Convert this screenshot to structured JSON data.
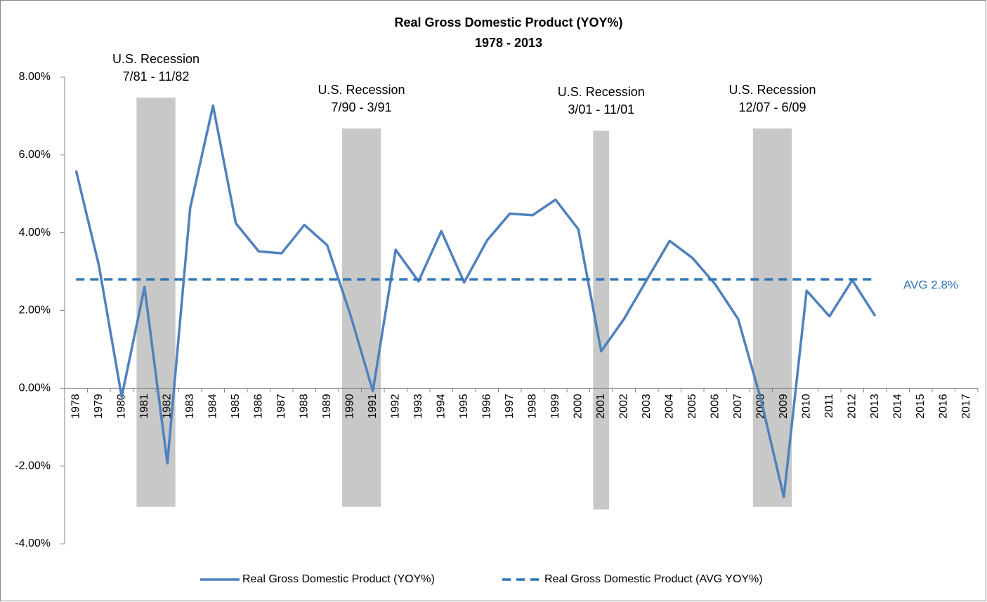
{
  "chart_data": {
    "type": "line",
    "title": "Real Gross Domestic Product (YOY%)",
    "subtitle": "1978 - 2013",
    "categories": [
      "1978",
      "1979",
      "1980",
      "1981",
      "1982",
      "1983",
      "1984",
      "1985",
      "1986",
      "1987",
      "1988",
      "1989",
      "1990",
      "1991",
      "1992",
      "1993",
      "1994",
      "1995",
      "1996",
      "1997",
      "1998",
      "1999",
      "2000",
      "2001",
      "2002",
      "2003",
      "2004",
      "2005",
      "2006",
      "2007",
      "2008",
      "2009",
      "2010",
      "2011",
      "2012",
      "2013",
      "2014",
      "2015",
      "2016",
      "2017"
    ],
    "series": [
      {
        "name": "Real Gross Domestic Product (YOY%)",
        "color": "#4f81bd",
        "dashed": false,
        "values": [
          5.6,
          3.16,
          -0.22,
          2.6,
          -1.93,
          4.64,
          7.27,
          4.24,
          3.52,
          3.47,
          4.2,
          3.68,
          1.92,
          -0.07,
          3.56,
          2.75,
          4.04,
          2.72,
          3.8,
          4.49,
          4.45,
          4.85,
          4.09,
          0.95,
          1.78,
          2.79,
          3.79,
          3.35,
          2.67,
          1.78,
          -0.29,
          -2.8,
          2.51,
          1.85,
          2.78,
          1.86,
          null,
          null,
          null,
          null
        ]
      },
      {
        "name": "Real Gross Domestic Product (AVG YOY%)",
        "color": "#2e75b6",
        "dashed": true,
        "values": [
          2.8,
          2.8,
          2.8,
          2.8,
          2.8,
          2.8,
          2.8,
          2.8,
          2.8,
          2.8,
          2.8,
          2.8,
          2.8,
          2.8,
          2.8,
          2.8,
          2.8,
          2.8,
          2.8,
          2.8,
          2.8,
          2.8,
          2.8,
          2.8,
          2.8,
          2.8,
          2.8,
          2.8,
          2.8,
          2.8,
          2.8,
          2.8,
          2.8,
          2.8,
          2.8,
          2.8,
          null,
          null,
          null,
          null
        ]
      }
    ],
    "ylim": [
      -4,
      8
    ],
    "yticks": [
      {
        "value": -4,
        "label": "-4.00%"
      },
      {
        "value": -2,
        "label": "-2.00%"
      },
      {
        "value": 0,
        "label": "0.00%"
      },
      {
        "value": 2,
        "label": "2.00%"
      },
      {
        "value": 4,
        "label": "4.00%"
      },
      {
        "value": 6,
        "label": "6.00%"
      },
      {
        "value": 8,
        "label": "8.00%"
      }
    ],
    "grid": false,
    "legend": "bottom",
    "recession_color": "#c8c8c8",
    "recessions": [
      {
        "label": "U.S. Recession",
        "period": "7/81 - 11/82",
        "start": "1981",
        "end": "1982",
        "range": [
          -3.05,
          7.47
        ]
      },
      {
        "label": "U.S. Recession",
        "period": "7/90 - 3/91",
        "start": "1990",
        "end": "1991",
        "range": [
          -3.05,
          6.68
        ]
      },
      {
        "label": "U.S. Recession",
        "period": "3/01 - 11/01",
        "start": "2001",
        "end": "2001",
        "range": [
          -3.12,
          6.62
        ]
      },
      {
        "label": "U.S. Recession",
        "period": "12/07 - 6/09",
        "start": "2008",
        "end": "2009",
        "range": [
          -3.05,
          6.68
        ]
      }
    ],
    "avg_label": "AVG 2.8%",
    "avg_label_color": "#2e75b6"
  }
}
